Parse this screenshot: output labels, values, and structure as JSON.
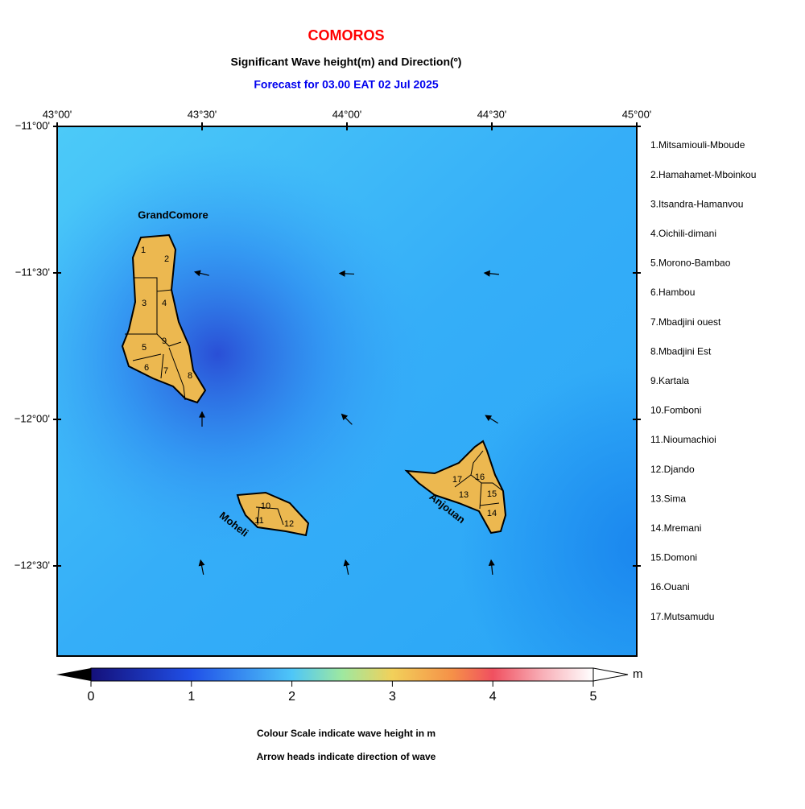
{
  "header": {
    "title": "COMOROS",
    "subtitle": "Significant Wave height(m) and Direction(º)",
    "forecast": "Forecast for  03.00 EAT 02 Jul 2025"
  },
  "map": {
    "lon_ticks": [
      "43°00'",
      "43°30'",
      "44°00'",
      "44°30'",
      "45°00'"
    ],
    "lat_ticks": [
      "−11°00'",
      "−11°30'",
      "−12°00'",
      "−12°30'"
    ],
    "islands": [
      "GrandComore",
      "Moheli",
      "Anjouan"
    ],
    "region_numbers": [
      "1",
      "2",
      "3",
      "4",
      "5",
      "6",
      "7",
      "8",
      "9",
      "10",
      "11",
      "12",
      "13",
      "14",
      "15",
      "16",
      "17"
    ],
    "regions": [
      "1.Mitsamiouli-Mboude",
      "2.Hamahamet-Mboinkou",
      "3.Itsandra-Hamanvou",
      "4.Oichili-dimani",
      "5.Morono-Bambao",
      "6.Hambou",
      "7.Mbadjini ouest",
      "8.Mbadjini Est",
      "9.Kartala",
      "10.Fomboni",
      "11.Nioumachioi",
      "12.Djando",
      "13.Sima",
      "14.Mremani",
      "15.Domoni",
      "16.Ouani",
      "17.Mutsamudu"
    ]
  },
  "colorbar": {
    "ticks": [
      0,
      1,
      2,
      3,
      4,
      5
    ],
    "unit": "m"
  },
  "notes": [
    "Colour Scale indicate wave height in m",
    "Arrow heads indicate direction of wave"
  ]
}
